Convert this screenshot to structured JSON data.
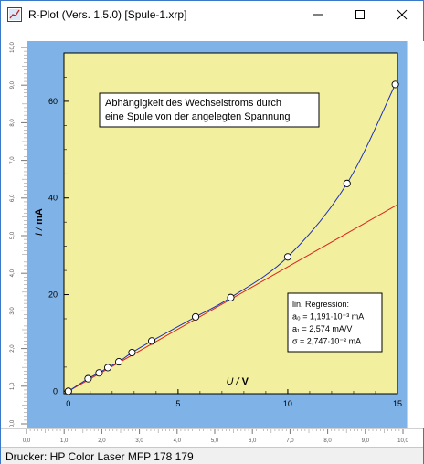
{
  "window": {
    "title": "R-Plot (Vers. 1.5.0) [Spule-1.xrp]",
    "icons": [
      "app-icon",
      "minimize-icon",
      "maximize-icon",
      "close-icon"
    ]
  },
  "rulers": {
    "horizontal": [
      "0,0",
      "1,0",
      "2,0",
      "3,0",
      "4,0",
      "5,0",
      "6,0",
      "7,0",
      "8,0",
      "9,0",
      "10,0"
    ],
    "vertical": [
      "0,0",
      "1,0",
      "2,0",
      "3,0",
      "4,0",
      "5,0",
      "6,0",
      "7,0",
      "8,0",
      "9,0",
      "10,0"
    ]
  },
  "status": {
    "printer": "Drucker: HP Color Laser MFP 178 179"
  },
  "colors": {
    "plot_bg": "#f2f09e",
    "canvas_bg": "#7fb2e6",
    "fit_line": "#dd2222",
    "curve": "#1c2fb8",
    "markers": "#ffffff"
  },
  "chart_data": {
    "type": "scatter",
    "title": "Abhängigkeit des Wechselstroms durch eine Spule von der angelegten Spannung",
    "title_lines": [
      "Abhängigkeit des Wechselstroms durch",
      "eine Spule von der angelegten Spannung"
    ],
    "xlabel_var": "U",
    "xlabel_unit": "V",
    "ylabel_var": "I",
    "ylabel_unit": "mA",
    "xlim": [
      -0.2,
      15
    ],
    "ylim": [
      -0.5,
      70
    ],
    "x_ticks": [
      "0",
      "5",
      "10",
      "15"
    ],
    "y_ticks": [
      "0",
      "20",
      "40",
      "60"
    ],
    "series": [
      {
        "points": [
          [
            0.0,
            0.0
          ],
          [
            0.9,
            2.6
          ],
          [
            1.4,
            3.8
          ],
          [
            1.8,
            4.9
          ],
          [
            2.3,
            6.1
          ],
          [
            2.9,
            8.0
          ],
          [
            3.8,
            10.4
          ],
          [
            5.8,
            15.4
          ],
          [
            7.4,
            19.4
          ],
          [
            10.0,
            27.8
          ],
          [
            12.7,
            43.0
          ],
          [
            14.9,
            63.5
          ]
        ]
      }
    ],
    "fit_line": {
      "slope": 2.574,
      "intercept": 0.001191,
      "x_range": [
        0,
        15
      ]
    },
    "regression": {
      "heading": "lin. Regression:",
      "a0": "a₀ = 1,191·10⁻³ mA",
      "a1": "a₁ = 2,574 mA/V",
      "sigma": "σ = 2,747·10⁻² mA"
    },
    "legend": "none",
    "grid": false
  }
}
